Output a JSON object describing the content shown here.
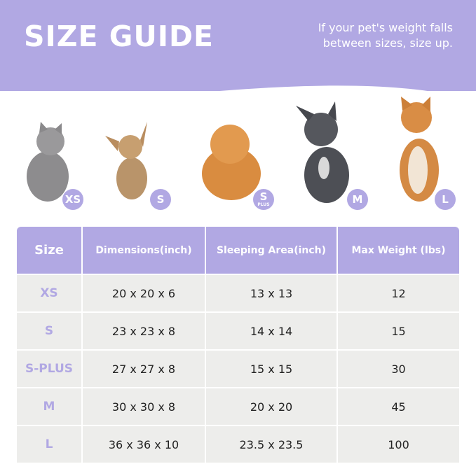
{
  "header": {
    "title": "SIZE GUIDE",
    "note": "If your pet's weight falls between sizes, size up."
  },
  "colors": {
    "accent": "#b1a8e3",
    "row_bg": "#ededeb"
  },
  "pets": [
    {
      "animal": "cat",
      "badge": "XS"
    },
    {
      "animal": "chihuahua",
      "badge": "S"
    },
    {
      "animal": "pomeranian",
      "badge": "S",
      "badge_sub": "PLUS"
    },
    {
      "animal": "french-bulldog",
      "badge": "M"
    },
    {
      "animal": "shiba-inu",
      "badge": "L"
    }
  ],
  "table": {
    "headers": [
      "Size",
      "Dimensions(inch)",
      "Sleeping Area(inch)",
      "Max Weight (lbs)"
    ],
    "rows": [
      [
        "XS",
        "20 x 20 x 6",
        "13 x 13",
        "12"
      ],
      [
        "S",
        "23 x 23 x 8",
        "14 x 14",
        "15"
      ],
      [
        "S-PLUS",
        "27 x 27 x 8",
        "15 x 15",
        "30"
      ],
      [
        "M",
        "30 x 30 x 8",
        "20 x 20",
        "45"
      ],
      [
        "L",
        "36 x 36 x 10",
        "23.5 x 23.5",
        "100"
      ]
    ]
  }
}
